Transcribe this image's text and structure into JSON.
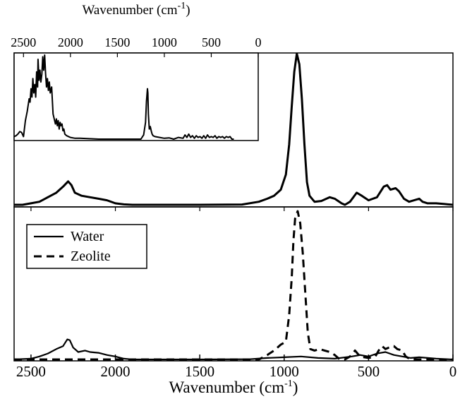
{
  "chart_data": [
    {
      "panel": "upper",
      "type": "line",
      "xlabel": "",
      "ylabel": "",
      "xlim": [
        2600,
        0
      ],
      "x_reversed": true,
      "y_ticks": false,
      "grid": false,
      "series": [
        {
          "line_style": "solid",
          "color": "#000000",
          "points": [
            [
              2600,
              0.0
            ],
            [
              2550,
              0.0
            ],
            [
              2500,
              0.01
            ],
            [
              2450,
              0.02
            ],
            [
              2400,
              0.05
            ],
            [
              2350,
              0.08
            ],
            [
              2310,
              0.12
            ],
            [
              2280,
              0.155
            ],
            [
              2260,
              0.13
            ],
            [
              2240,
              0.08
            ],
            [
              2200,
              0.06
            ],
            [
              2150,
              0.05
            ],
            [
              2100,
              0.04
            ],
            [
              2050,
              0.03
            ],
            [
              2000,
              0.01
            ],
            [
              1950,
              0.003
            ],
            [
              1900,
              0.0
            ],
            [
              1500,
              0.0
            ],
            [
              1250,
              0.002
            ],
            [
              1150,
              0.02
            ],
            [
              1100,
              0.04
            ],
            [
              1060,
              0.06
            ],
            [
              1020,
              0.1
            ],
            [
              990,
              0.2
            ],
            [
              970,
              0.4
            ],
            [
              955,
              0.65
            ],
            [
              940,
              0.88
            ],
            [
              925,
              1.0
            ],
            [
              910,
              0.93
            ],
            [
              895,
              0.7
            ],
            [
              880,
              0.4
            ],
            [
              865,
              0.15
            ],
            [
              850,
              0.06
            ],
            [
              820,
              0.02
            ],
            [
              780,
              0.025
            ],
            [
              730,
              0.05
            ],
            [
              700,
              0.04
            ],
            [
              660,
              0.01
            ],
            [
              640,
              0.0
            ],
            [
              610,
              0.02
            ],
            [
              570,
              0.08
            ],
            [
              540,
              0.06
            ],
            [
              500,
              0.03
            ],
            [
              450,
              0.05
            ],
            [
              410,
              0.12
            ],
            [
              390,
              0.13
            ],
            [
              370,
              0.1
            ],
            [
              340,
              0.11
            ],
            [
              320,
              0.09
            ],
            [
              290,
              0.04
            ],
            [
              260,
              0.02
            ],
            [
              230,
              0.03
            ],
            [
              200,
              0.04
            ],
            [
              180,
              0.02
            ],
            [
              150,
              0.01
            ],
            [
              100,
              0.01
            ],
            [
              50,
              0.005
            ],
            [
              0,
              0.0
            ]
          ]
        }
      ]
    },
    {
      "panel": "lower",
      "type": "line",
      "xlabel": "Wavenumber (cm-1)",
      "ylabel": "",
      "xlim": [
        2600,
        0
      ],
      "x_reversed": true,
      "x_ticks": [
        2500,
        2000,
        1500,
        1000,
        500,
        0
      ],
      "y_ticks": false,
      "grid": false,
      "legend": "top-left",
      "series": [
        {
          "name": "Water",
          "line_style": "solid",
          "color": "#000000",
          "points": [
            [
              2600,
              0.0
            ],
            [
              2500,
              0.005
            ],
            [
              2450,
              0.02
            ],
            [
              2400,
              0.04
            ],
            [
              2350,
              0.07
            ],
            [
              2310,
              0.09
            ],
            [
              2285,
              0.135
            ],
            [
              2270,
              0.13
            ],
            [
              2250,
              0.08
            ],
            [
              2220,
              0.05
            ],
            [
              2180,
              0.06
            ],
            [
              2150,
              0.05
            ],
            [
              2100,
              0.045
            ],
            [
              2050,
              0.03
            ],
            [
              2000,
              0.02
            ],
            [
              1950,
              0.005
            ],
            [
              1900,
              0.0
            ],
            [
              1500,
              0.0
            ],
            [
              1200,
              0.002
            ],
            [
              1100,
              0.01
            ],
            [
              1000,
              0.015
            ],
            [
              900,
              0.02
            ],
            [
              800,
              0.01
            ],
            [
              700,
              0.005
            ],
            [
              600,
              0.02
            ],
            [
              550,
              0.03
            ],
            [
              500,
              0.02
            ],
            [
              450,
              0.04
            ],
            [
              400,
              0.05
            ],
            [
              350,
              0.03
            ],
            [
              300,
              0.02
            ],
            [
              250,
              0.01
            ],
            [
              200,
              0.015
            ],
            [
              100,
              0.005
            ],
            [
              0,
              0.0
            ]
          ]
        },
        {
          "name": "Zeolite",
          "line_style": "dashed",
          "color": "#000000",
          "points": [
            [
              2600,
              0.0
            ],
            [
              1300,
              0.0
            ],
            [
              1150,
              0.0
            ],
            [
              1100,
              0.03
            ],
            [
              1060,
              0.06
            ],
            [
              1020,
              0.1
            ],
            [
              990,
              0.12
            ],
            [
              970,
              0.3
            ],
            [
              955,
              0.55
            ],
            [
              945,
              0.8
            ],
            [
              935,
              0.95
            ],
            [
              920,
              1.0
            ],
            [
              905,
              0.92
            ],
            [
              890,
              0.72
            ],
            [
              875,
              0.45
            ],
            [
              860,
              0.18
            ],
            [
              845,
              0.07
            ],
            [
              820,
              0.06
            ],
            [
              790,
              0.07
            ],
            [
              760,
              0.06
            ],
            [
              730,
              0.05
            ],
            [
              700,
              0.03
            ],
            [
              670,
              0.0
            ],
            [
              640,
              0.0
            ],
            [
              610,
              0.02
            ],
            [
              580,
              0.06
            ],
            [
              550,
              0.02
            ],
            [
              500,
              0.01
            ],
            [
              460,
              0.02
            ],
            [
              440,
              0.06
            ],
            [
              420,
              0.09
            ],
            [
              400,
              0.07
            ],
            [
              380,
              0.08
            ],
            [
              350,
              0.09
            ],
            [
              330,
              0.07
            ],
            [
              300,
              0.06
            ],
            [
              280,
              0.02
            ],
            [
              250,
              0.0
            ],
            [
              0,
              0.0
            ]
          ]
        }
      ]
    },
    {
      "panel": "inset",
      "type": "line",
      "xlabel": "Wavenumber (cm-1)",
      "ylabel": "",
      "xlim": [
        2600,
        0
      ],
      "x_reversed": true,
      "x_ticks": [
        2500,
        2000,
        1500,
        1000,
        500,
        0
      ],
      "x_axis_position": "top",
      "y_ticks": false,
      "grid": false,
      "series": [
        {
          "line_style": "solid",
          "color": "#000000",
          "points": [
            [
              2600,
              0.03
            ],
            [
              2580,
              0.04
            ],
            [
              2560,
              0.06
            ],
            [
              2540,
              0.09
            ],
            [
              2520,
              0.08
            ],
            [
              2500,
              0.03
            ],
            [
              2480,
              0.22
            ],
            [
              2460,
              0.33
            ],
            [
              2440,
              0.48
            ],
            [
              2430,
              0.44
            ],
            [
              2420,
              0.6
            ],
            [
              2410,
              0.5
            ],
            [
              2400,
              0.72
            ],
            [
              2390,
              0.55
            ],
            [
              2380,
              0.65
            ],
            [
              2370,
              0.5
            ],
            [
              2360,
              0.8
            ],
            [
              2350,
              0.62
            ],
            [
              2345,
              0.95
            ],
            [
              2335,
              0.7
            ],
            [
              2325,
              0.82
            ],
            [
              2315,
              0.68
            ],
            [
              2305,
              0.77
            ],
            [
              2295,
              0.98
            ],
            [
              2285,
              0.82
            ],
            [
              2275,
              1.0
            ],
            [
              2265,
              0.78
            ],
            [
              2255,
              0.62
            ],
            [
              2245,
              0.72
            ],
            [
              2235,
              0.58
            ],
            [
              2225,
              0.68
            ],
            [
              2215,
              0.55
            ],
            [
              2200,
              0.62
            ],
            [
              2185,
              0.3
            ],
            [
              2175,
              0.25
            ],
            [
              2160,
              0.18
            ],
            [
              2150,
              0.24
            ],
            [
              2140,
              0.16
            ],
            [
              2130,
              0.22
            ],
            [
              2120,
              0.12
            ],
            [
              2110,
              0.2
            ],
            [
              2100,
              0.16
            ],
            [
              2090,
              0.18
            ],
            [
              2080,
              0.1
            ],
            [
              2070,
              0.12
            ],
            [
              2060,
              0.06
            ],
            [
              2040,
              0.04
            ],
            [
              2020,
              0.03
            ],
            [
              2000,
              0.02
            ],
            [
              1950,
              0.01
            ],
            [
              1900,
              0.01
            ],
            [
              1800,
              0.005
            ],
            [
              1700,
              0.0
            ],
            [
              1600,
              0.0
            ],
            [
              1500,
              0.0
            ],
            [
              1400,
              0.0
            ],
            [
              1300,
              0.0
            ],
            [
              1250,
              0.0
            ],
            [
              1220,
              0.05
            ],
            [
              1200,
              0.2
            ],
            [
              1190,
              0.45
            ],
            [
              1180,
              0.6
            ],
            [
              1175,
              0.55
            ],
            [
              1170,
              0.3
            ],
            [
              1160,
              0.12
            ],
            [
              1150,
              0.15
            ],
            [
              1140,
              0.1
            ],
            [
              1130,
              0.06
            ],
            [
              1120,
              0.04
            ],
            [
              1100,
              0.03
            ],
            [
              1050,
              0.02
            ],
            [
              1000,
              0.01
            ],
            [
              950,
              0.015
            ],
            [
              900,
              0.0
            ],
            [
              850,
              0.02
            ],
            [
              800,
              0.01
            ],
            [
              780,
              0.05
            ],
            [
              760,
              0.02
            ],
            [
              740,
              0.06
            ],
            [
              720,
              0.02
            ],
            [
              700,
              0.04
            ],
            [
              680,
              0.01
            ],
            [
              660,
              0.04
            ],
            [
              640,
              0.02
            ],
            [
              620,
              0.03
            ],
            [
              600,
              0.01
            ],
            [
              580,
              0.04
            ],
            [
              560,
              0.01
            ],
            [
              540,
              0.05
            ],
            [
              520,
              0.02
            ],
            [
              500,
              0.03
            ],
            [
              480,
              0.02
            ],
            [
              460,
              0.04
            ],
            [
              440,
              0.01
            ],
            [
              420,
              0.03
            ],
            [
              400,
              0.02
            ],
            [
              380,
              0.03
            ],
            [
              360,
              0.01
            ],
            [
              340,
              0.03
            ],
            [
              320,
              0.02
            ],
            [
              300,
              0.03
            ],
            [
              280,
              0.0
            ],
            [
              260,
              0.0
            ]
          ]
        }
      ]
    }
  ]
}
